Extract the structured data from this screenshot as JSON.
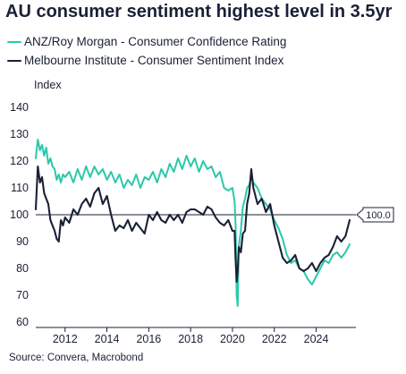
{
  "chart_data": {
    "type": "line",
    "title": "AU consumer sentiment highest level in 3.5yr",
    "ylabel": "Index",
    "xlabel": "",
    "ylim": [
      58,
      144
    ],
    "xlim": [
      2010.6,
      2025.9
    ],
    "y_ticks": [
      60,
      70,
      80,
      90,
      100,
      110,
      120,
      130,
      140
    ],
    "x_ticks": [
      2012,
      2014,
      2016,
      2018,
      2020,
      2022,
      2024
    ],
    "grid": false,
    "reference_line": {
      "value": 100,
      "label": "100.0"
    },
    "source": "Source: Convera, Macrobond",
    "series": [
      {
        "name": "ANZ/Roy Morgan - Consumer Confidence Rating",
        "color": "#2bc9a9",
        "x": [
          2010.6,
          2010.7,
          2010.8,
          2010.9,
          2011.0,
          2011.1,
          2011.2,
          2011.3,
          2011.4,
          2011.5,
          2011.6,
          2011.7,
          2011.8,
          2011.9,
          2012.0,
          2012.2,
          2012.4,
          2012.6,
          2012.8,
          2013.0,
          2013.2,
          2013.4,
          2013.6,
          2013.8,
          2014.0,
          2014.2,
          2014.4,
          2014.6,
          2014.8,
          2015.0,
          2015.2,
          2015.4,
          2015.6,
          2015.8,
          2016.0,
          2016.2,
          2016.4,
          2016.6,
          2016.8,
          2017.0,
          2017.2,
          2017.4,
          2017.6,
          2017.8,
          2018.0,
          2018.2,
          2018.4,
          2018.6,
          2018.8,
          2019.0,
          2019.2,
          2019.4,
          2019.6,
          2019.8,
          2020.0,
          2020.1,
          2020.15,
          2020.2,
          2020.25,
          2020.3,
          2020.4,
          2020.5,
          2020.6,
          2020.7,
          2020.8,
          2020.9,
          2021.0,
          2021.2,
          2021.4,
          2021.6,
          2021.8,
          2022.0,
          2022.2,
          2022.4,
          2022.6,
          2022.8,
          2023.0,
          2023.2,
          2023.4,
          2023.6,
          2023.8,
          2024.0,
          2024.2,
          2024.4,
          2024.6,
          2024.8,
          2025.0,
          2025.2,
          2025.4,
          2025.6
        ],
        "values": [
          121,
          128,
          124,
          126,
          122,
          125,
          119,
          121,
          118,
          117,
          113,
          115,
          112,
          115,
          114,
          116,
          112,
          117,
          113,
          118,
          114,
          118,
          115,
          117,
          113,
          116,
          112,
          115,
          110,
          113,
          111,
          115,
          110,
          114,
          113,
          116,
          112,
          117,
          114,
          119,
          116,
          121,
          117,
          122,
          118,
          121,
          116,
          120,
          117,
          118,
          114,
          116,
          110,
          109,
          110,
          105,
          96,
          70,
          66,
          88,
          94,
          103,
          106,
          110,
          111,
          114,
          112,
          110,
          106,
          104,
          102,
          98,
          95,
          91,
          85,
          82,
          83,
          80,
          79,
          76,
          74,
          77,
          80,
          83,
          82,
          85,
          86,
          84,
          86,
          89
        ]
      },
      {
        "name": "Melbourne Institute - Consumer Sentiment Index",
        "color": "#1a2035",
        "x": [
          2010.6,
          2010.7,
          2010.8,
          2010.9,
          2011.0,
          2011.1,
          2011.2,
          2011.3,
          2011.4,
          2011.5,
          2011.6,
          2011.7,
          2011.8,
          2011.9,
          2012.0,
          2012.2,
          2012.4,
          2012.6,
          2012.8,
          2013.0,
          2013.2,
          2013.4,
          2013.6,
          2013.8,
          2014.0,
          2014.2,
          2014.4,
          2014.6,
          2014.8,
          2015.0,
          2015.2,
          2015.4,
          2015.6,
          2015.8,
          2016.0,
          2016.2,
          2016.4,
          2016.6,
          2016.8,
          2017.0,
          2017.2,
          2017.4,
          2017.6,
          2017.8,
          2018.0,
          2018.2,
          2018.4,
          2018.6,
          2018.8,
          2019.0,
          2019.2,
          2019.4,
          2019.6,
          2019.8,
          2020.0,
          2020.1,
          2020.15,
          2020.2,
          2020.25,
          2020.3,
          2020.4,
          2020.5,
          2020.6,
          2020.7,
          2020.8,
          2020.9,
          2021.0,
          2021.2,
          2021.4,
          2021.6,
          2021.8,
          2022.0,
          2022.2,
          2022.4,
          2022.6,
          2022.8,
          2023.0,
          2023.2,
          2023.4,
          2023.6,
          2023.8,
          2024.0,
          2024.2,
          2024.4,
          2024.6,
          2024.8,
          2025.0,
          2025.2,
          2025.4,
          2025.6
        ],
        "values": [
          102,
          118,
          112,
          114,
          108,
          106,
          104,
          98,
          96,
          94,
          91,
          90,
          98,
          96,
          99,
          97,
          102,
          100,
          104,
          106,
          103,
          108,
          110,
          104,
          107,
          100,
          94,
          96,
          95,
          98,
          94,
          97,
          95,
          93,
          100,
          98,
          101,
          98,
          97,
          100,
          98,
          100,
          97,
          101,
          102,
          102,
          101,
          100,
          103,
          102,
          99,
          97,
          96,
          98,
          94,
          94,
          83,
          75,
          79,
          88,
          86,
          93,
          94,
          104,
          108,
          117,
          110,
          104,
          106,
          101,
          104,
          96,
          90,
          84,
          82,
          83,
          85,
          80,
          79,
          80,
          82,
          79,
          82,
          84,
          85,
          88,
          92,
          90,
          92,
          98
        ]
      }
    ]
  }
}
